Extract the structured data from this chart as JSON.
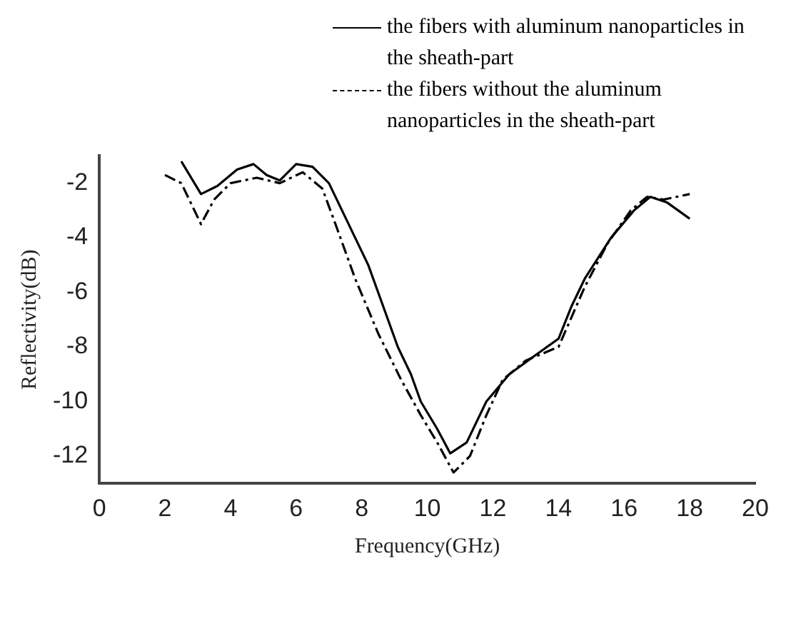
{
  "chart_data": {
    "type": "line",
    "xlabel": "Frequency(GHz)",
    "ylabel": "Reflectivity(dB)",
    "xlim": [
      0,
      20
    ],
    "xticks": [
      0,
      2,
      4,
      6,
      8,
      10,
      12,
      14,
      16,
      18,
      20
    ],
    "ylim": [
      -13,
      -1
    ],
    "yticks": [
      -2,
      -4,
      -6,
      -8,
      -10,
      -12
    ],
    "grid": false,
    "legend": "top",
    "marker": "none",
    "series": [
      {
        "name": "the fibers with aluminum nanoparticles in the sheath-part",
        "color": "#000000",
        "line_style": "solid",
        "x": [
          2.5,
          3.1,
          3.6,
          4.2,
          4.7,
          5.1,
          5.5,
          6,
          6.5,
          7,
          7.4,
          7.8,
          8.2,
          8.5,
          9.1,
          9.5,
          9.8,
          10.3,
          10.7,
          11.2,
          11.8,
          12.5,
          13.3,
          14,
          14.4,
          14.8,
          15.6,
          16.3,
          16.8,
          17.3,
          18
        ],
        "values": [
          -1.2,
          -2.4,
          -2.1,
          -1.5,
          -1.3,
          -1.7,
          -1.9,
          -1.3,
          -1.4,
          -2,
          -3,
          -4,
          -5,
          -6,
          -8,
          -9,
          -10,
          -11,
          -11.9,
          -11.5,
          -10,
          -9,
          -8.3,
          -7.7,
          -6.5,
          -5.5,
          -4,
          -3,
          -2.5,
          -2.7,
          -3.3
        ]
      },
      {
        "name": "the fibers without the aluminum nanoparticles in the sheath-part",
        "color": "#000000",
        "line_style": "dashed",
        "x": [
          2,
          2.5,
          3.1,
          3.5,
          4,
          4.8,
          5.5,
          6.2,
          6.8,
          7.2,
          7.8,
          8.5,
          9.2,
          9.8,
          10.3,
          10.8,
          11.3,
          11.8,
          12.3,
          13,
          14,
          14.8,
          15.5,
          16.2,
          16.7,
          17.2,
          18
        ],
        "values": [
          -1.7,
          -2,
          -3.5,
          -2.6,
          -2,
          -1.8,
          -2,
          -1.6,
          -2.2,
          -3.5,
          -5.5,
          -7.5,
          -9.2,
          -10.5,
          -11.5,
          -12.6,
          -12,
          -10.5,
          -9.2,
          -8.5,
          -8,
          -5.8,
          -4.2,
          -3,
          -2.5,
          -2.6,
          -2.4
        ]
      }
    ]
  }
}
